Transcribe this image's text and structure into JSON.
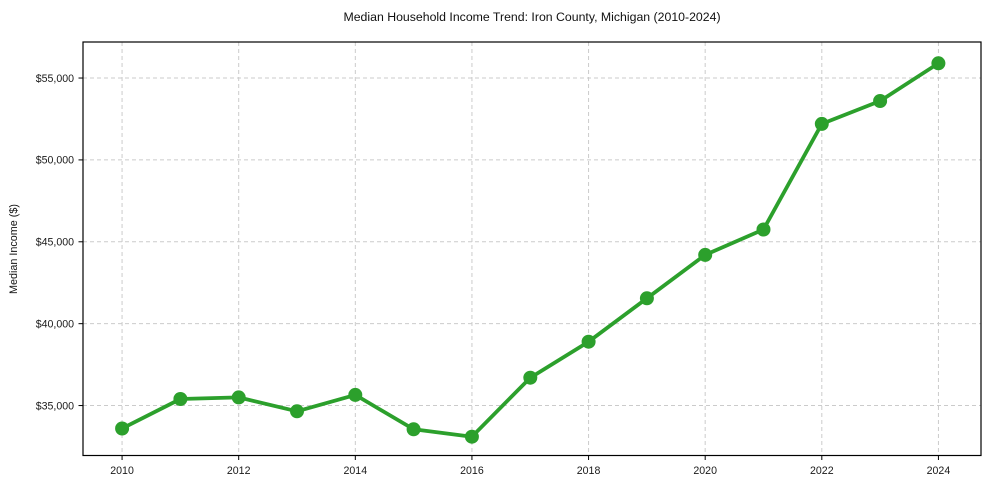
{
  "chart_data": {
    "type": "line",
    "title": "Median Household Income Trend: Iron County, Michigan (2010-2024)",
    "xlabel": "",
    "ylabel": "Median Income ($)",
    "x": [
      2010,
      2011,
      2012,
      2013,
      2014,
      2015,
      2016,
      2017,
      2018,
      2019,
      2020,
      2021,
      2022,
      2023,
      2024
    ],
    "values": [
      33600,
      35400,
      35500,
      34650,
      35650,
      33550,
      33100,
      36700,
      38900,
      41550,
      44200,
      45750,
      52200,
      53600,
      55900
    ],
    "series_name": "Median Household Income",
    "x_ticks": {
      "values": [
        2010,
        2012,
        2014,
        2016,
        2018,
        2020,
        2022,
        2024
      ],
      "labels": [
        "2010",
        "2012",
        "2014",
        "2016",
        "2018",
        "2020",
        "2022",
        "2024"
      ]
    },
    "y_ticks": {
      "values": [
        35000,
        40000,
        45000,
        50000,
        55000
      ],
      "labels": [
        "$35,000",
        "$40,000",
        "$45,000",
        "$50,000",
        "$55,000"
      ]
    },
    "xlim": [
      2009.33,
      2024.73
    ],
    "ylim": [
      31950,
      57200
    ],
    "grid": true,
    "grid_style": "dashed",
    "legend": false,
    "marker": "circle",
    "colors": {
      "line": "#2ca02c",
      "grid": "#cbcbcb",
      "background": "#ffffff",
      "spine": "#000000"
    }
  }
}
